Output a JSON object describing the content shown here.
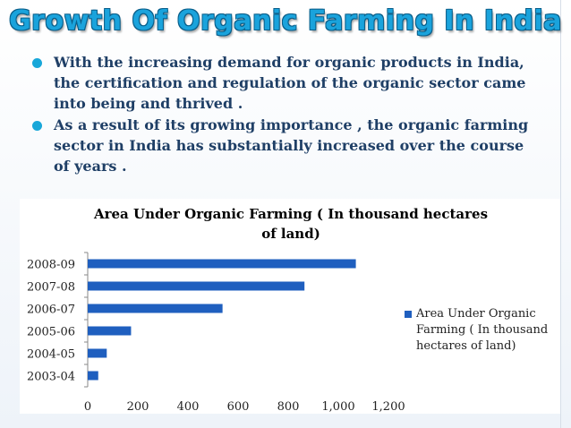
{
  "slide": {
    "title": "Growth Of Organic Farming In India",
    "bullets": [
      "With the increasing demand for organic products in India, the certification and regulation of the organic sector came into being and thrived .",
      "As a result of its growing importance , the organic farming sector in India has substantially increased over the course of years ."
    ]
  },
  "chart_data": {
    "type": "bar",
    "orientation": "horizontal",
    "title": "Area Under Organic Farming ( In thousand hectares of land)",
    "title_lines": [
      "Area Under Organic Farming ( In thousand hectares",
      "of land)"
    ],
    "categories": [
      "2003-04",
      "2004-05",
      "2005-06",
      "2006-07",
      "2007-08",
      "2008-09"
    ],
    "series": [
      {
        "name": "Area Under Organic Farming ( In thousand hectares of land)",
        "values": [
          42,
          76,
          173,
          538,
          865,
          1070
        ],
        "color": "#1f5fbf"
      }
    ],
    "x_ticks": [
      "0",
      "200",
      "400",
      "600",
      "800",
      "1,000",
      "1,200"
    ],
    "xlim": [
      0,
      1200
    ],
    "grid": false,
    "legend_position": "right"
  },
  "legend": {
    "lines": [
      "Area Under Organic",
      "Farming ( In thousand",
      "hectares of land)"
    ]
  }
}
